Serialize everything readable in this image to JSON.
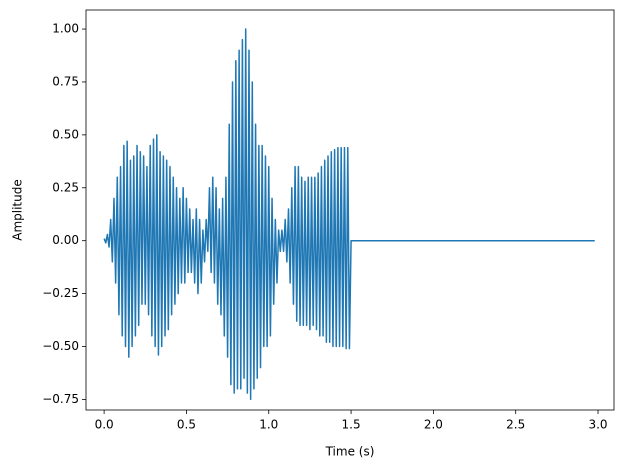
{
  "chart_data": {
    "type": "line",
    "xlabel": "Time (s)",
    "ylabel": "Amplitude",
    "xlim": [
      -0.11,
      3.097
    ],
    "ylim": [
      -0.8,
      1.09
    ],
    "xticks": [
      {
        "value": 0,
        "label": "0.0"
      },
      {
        "value": 0.5,
        "label": "0.5"
      },
      {
        "value": 1,
        "label": "1.0"
      },
      {
        "value": 1.5,
        "label": "1.5"
      },
      {
        "value": 2,
        "label": "2.0"
      },
      {
        "value": 2.5,
        "label": "2.5"
      },
      {
        "value": 3,
        "label": "3.0"
      }
    ],
    "yticks": [
      {
        "value": -0.75,
        "label": "−0.75"
      },
      {
        "value": -0.5,
        "label": "−0.50"
      },
      {
        "value": -0.25,
        "label": "−0.25"
      },
      {
        "value": 0,
        "label": "0.00"
      },
      {
        "value": 0.25,
        "label": "0.25"
      },
      {
        "value": 0.5,
        "label": "0.50"
      },
      {
        "value": 0.75,
        "label": "0.75"
      },
      {
        "value": 1,
        "label": "1.00"
      }
    ],
    "series": [
      {
        "color": "#1f77b4",
        "x": [
          0,
          0.01,
          0.02,
          0.03,
          0.04,
          0.05,
          0.06,
          0.07,
          0.08,
          0.09,
          0.1,
          0.11,
          0.12,
          0.13,
          0.14,
          0.15,
          0.16,
          0.17,
          0.18,
          0.19,
          0.2,
          0.21,
          0.22,
          0.23,
          0.24,
          0.25,
          0.26,
          0.27,
          0.28,
          0.29,
          0.3,
          0.31,
          0.32,
          0.33,
          0.34,
          0.35,
          0.36,
          0.37,
          0.38,
          0.39,
          0.4,
          0.41,
          0.42,
          0.43,
          0.44,
          0.45,
          0.46,
          0.47,
          0.48,
          0.49,
          0.5,
          0.51,
          0.52,
          0.53,
          0.54,
          0.55,
          0.56,
          0.57,
          0.58,
          0.59,
          0.6,
          0.61,
          0.62,
          0.63,
          0.64,
          0.65,
          0.66,
          0.67,
          0.68,
          0.69,
          0.7,
          0.71,
          0.72,
          0.73,
          0.74,
          0.75,
          0.76,
          0.77,
          0.78,
          0.79,
          0.8,
          0.81,
          0.82,
          0.83,
          0.84,
          0.85,
          0.86,
          0.87,
          0.88,
          0.89,
          0.9,
          0.91,
          0.92,
          0.93,
          0.94,
          0.95,
          0.96,
          0.97,
          0.98,
          0.99,
          1,
          1.01,
          1.02,
          1.03,
          1.04,
          1.05,
          1.06,
          1.07,
          1.08,
          1.09,
          1.1,
          1.11,
          1.12,
          1.13,
          1.14,
          1.15,
          1.16,
          1.17,
          1.18,
          1.19,
          1.2,
          1.21,
          1.22,
          1.23,
          1.24,
          1.25,
          1.26,
          1.27,
          1.28,
          1.29,
          1.3,
          1.31,
          1.32,
          1.33,
          1.34,
          1.35,
          1.36,
          1.37,
          1.38,
          1.39,
          1.4,
          1.41,
          1.42,
          1.43,
          1.44,
          1.45,
          1.46,
          1.47,
          1.48,
          1.49,
          1.5,
          2.98
        ],
        "values": [
          0.01,
          -0.01,
          0.03,
          -0.03,
          0.1,
          -0.1,
          0.2,
          -0.2,
          0.3,
          -0.35,
          0.35,
          -0.45,
          0.45,
          -0.5,
          0.47,
          -0.55,
          0.38,
          -0.5,
          0.4,
          -0.45,
          0.45,
          -0.4,
          0.42,
          -0.3,
          0.4,
          -0.3,
          0.35,
          -0.35,
          0.45,
          -0.45,
          0.48,
          -0.5,
          0.5,
          -0.54,
          0.42,
          -0.5,
          0.4,
          -0.45,
          0.38,
          -0.42,
          0.35,
          -0.35,
          0.3,
          -0.3,
          0.25,
          -0.25,
          0.2,
          -0.2,
          0.25,
          -0.2,
          0.2,
          -0.15,
          0.15,
          -0.15,
          0.1,
          -0.2,
          0.15,
          -0.25,
          0.1,
          -0.2,
          0.05,
          -0.1,
          0.1,
          -0.05,
          0.25,
          -0.15,
          0.3,
          -0.2,
          0.25,
          -0.3,
          0.15,
          -0.35,
          0.2,
          -0.45,
          0.3,
          -0.55,
          0.55,
          -0.68,
          0.75,
          -0.72,
          0.85,
          -0.7,
          0.9,
          -0.7,
          0.95,
          -0.65,
          1.0,
          -0.72,
          0.9,
          -0.75,
          0.75,
          -0.7,
          0.55,
          -0.65,
          0.45,
          -0.6,
          0.45,
          -0.5,
          0.4,
          -0.5,
          0.35,
          -0.45,
          0.2,
          -0.3,
          0.1,
          -0.2,
          0.05,
          -0.05,
          0.05,
          -0.05,
          0.1,
          -0.1,
          0.15,
          -0.2,
          0.25,
          -0.3,
          0.35,
          -0.38,
          0.35,
          -0.4,
          0.3,
          -0.4,
          0.28,
          -0.4,
          0.3,
          -0.42,
          0.3,
          -0.4,
          0.3,
          -0.42,
          0.32,
          -0.45,
          0.35,
          -0.45,
          0.38,
          -0.48,
          0.4,
          -0.48,
          0.42,
          -0.5,
          0.43,
          -0.5,
          0.44,
          -0.5,
          0.44,
          -0.5,
          0.44,
          -0.51,
          0.44,
          -0.51,
          0,
          0
        ]
      }
    ]
  }
}
